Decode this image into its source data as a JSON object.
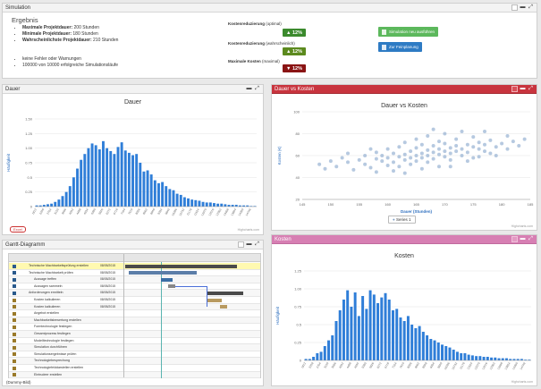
{
  "summary": {
    "header": "Simulation",
    "heading": "Ergebnis",
    "bullets": [
      {
        "label": "Maximale Projektdauer:",
        "value": "200 Stunden"
      },
      {
        "label": "Minimale Projektdauer:",
        "value": "180 Stunden"
      },
      {
        "label": "Wahrscheinlichste Projektdauer:",
        "value": "210 Stunden"
      }
    ],
    "notes": [
      "keine Fehler oder Warnungen",
      "100000 von 10000 erfolgreiche Simulationsläufe"
    ],
    "kpis": [
      {
        "label": "Kostenreduzierung",
        "qualifier": "(optimal)",
        "value": "12%",
        "direction": "up",
        "color": "#3b8a2d"
      },
      {
        "label": "Kostenreduzierung",
        "qualifier": "(wahrscheinlich)",
        "value": "12%",
        "direction": "up",
        "color": "#5c8a1e"
      },
      {
        "label": "Maximale Kosten",
        "qualifier": "(maximal)",
        "value": "12%",
        "direction": "down",
        "color": "#8a1414"
      }
    ],
    "buttons": [
      {
        "label": "Simulation neu ausführen",
        "color": "#5cb85c"
      },
      {
        "label": "Zur Feinplanung",
        "color": "#2e7bc4"
      }
    ]
  },
  "dauer_panel": {
    "header": "Dauer",
    "credit": "Highcharts.com",
    "export_label": "Excel"
  },
  "scatter_panel": {
    "header": "Dauer vs Kosten",
    "credit": "Highcharts.com"
  },
  "kosten_panel": {
    "header": "Kosten",
    "credit": "Highcharts.com"
  },
  "gantt_panel": {
    "header": "Gantt-Diagramm",
    "caption": "(Dummy-Bild)",
    "rows": [
      "Technische Machbarkeitsprüfung erstellen",
      "Technische Machbarkeit prüfen",
      "Aussage treffen",
      "Aussagen sammeln",
      "Anforderungen ermitteln",
      "Kosten kalkulieren",
      "Kosten kalkulieren",
      "Angebot erstellen",
      "Machbarkeitsbewertung erstellen",
      "Formtechnologie festlegen",
      "Gesamtprozess festlegen",
      "Modelltechnologie festlegen",
      "Simulation durchführen",
      "Simulationsergebnisse prüfen",
      "Technologiebesprechung",
      "Technologiefelddarstellen erstellen",
      "Eintrudeer erstellen"
    ],
    "dates": [
      "08/05/2015",
      "08/05/2015",
      "08/05/2015",
      "08/05/2015",
      "08/05/2015",
      "08/05/2015",
      "08/05/2015"
    ]
  },
  "chart_data": [
    {
      "type": "bar",
      "title": "Dauer",
      "ylabel": "Häufigkeit",
      "ylim": [
        0,
        1.5
      ],
      "yticks": [
        "0",
        "0.25",
        "0.5",
        "0.75",
        "1.00",
        "1.25",
        "1.50"
      ],
      "categories": [
        "1812",
        "2035",
        "2258",
        "2481",
        "2704",
        "2927",
        "3150",
        "3373",
        "3596",
        "3819",
        "4042",
        "4265",
        "4488",
        "4711",
        "4934",
        "5157",
        "5380",
        "5603",
        "5826",
        "6049",
        "6272",
        "6495",
        "6718",
        "6941",
        "7164",
        "7387",
        "7610",
        "7833",
        "8056",
        "8279",
        "8502",
        "8725",
        "8948",
        "9171",
        "9394",
        "9617",
        "9840",
        "10063",
        "10286",
        "10509",
        "10732",
        "10955",
        "11178",
        "11401",
        "11624",
        "11847",
        "12070",
        "12293",
        "12516",
        "12739",
        "12962",
        "13185",
        "13408",
        "13631",
        "13854",
        "14077",
        "14300",
        "14523",
        "14746",
        "14969"
      ],
      "values": [
        0.02,
        0.02,
        0.03,
        0.04,
        0.05,
        0.08,
        0.12,
        0.18,
        0.25,
        0.35,
        0.5,
        0.65,
        0.8,
        0.9,
        1.0,
        1.08,
        1.05,
        0.98,
        1.12,
        1.0,
        0.95,
        0.9,
        1.02,
        1.1,
        0.96,
        0.92,
        0.88,
        0.9,
        0.75,
        0.6,
        0.62,
        0.55,
        0.45,
        0.4,
        0.42,
        0.35,
        0.3,
        0.28,
        0.22,
        0.2,
        0.16,
        0.14,
        0.12,
        0.11,
        0.1,
        0.08,
        0.07,
        0.07,
        0.06,
        0.05,
        0.05,
        0.04,
        0.03,
        0.03,
        0.03,
        0.02,
        0.02,
        0.02,
        0.01,
        0.01
      ]
    },
    {
      "type": "scatter",
      "title": "Dauer vs Kosten",
      "xlabel": "Dauer (Stunden)",
      "ylabel": "Kosten (€)",
      "xlim": [
        145,
        185
      ],
      "ylim": [
        20,
        100
      ],
      "xticks": [
        "145",
        "150",
        "155",
        "160",
        "165",
        "170",
        "175",
        "180",
        "185"
      ],
      "yticks": [
        "20",
        "40",
        "60",
        "80",
        "100"
      ],
      "series": [
        {
          "name": "Series 1",
          "points": [
            [
              148,
              52
            ],
            [
              149,
              48
            ],
            [
              150,
              55
            ],
            [
              151,
              50
            ],
            [
              152,
              58
            ],
            [
              153,
              54
            ],
            [
              154,
              47
            ],
            [
              155,
              56
            ],
            [
              156,
              60
            ],
            [
              156,
              52
            ],
            [
              157,
              49
            ],
            [
              158,
              57
            ],
            [
              158,
              63
            ],
            [
              159,
              55
            ],
            [
              159,
              60
            ],
            [
              160,
              58
            ],
            [
              160,
              51
            ],
            [
              160,
              66
            ],
            [
              161,
              62
            ],
            [
              161,
              54
            ],
            [
              162,
              59
            ],
            [
              162,
              68
            ],
            [
              162,
              50
            ],
            [
              163,
              61
            ],
            [
              163,
              56
            ],
            [
              163,
              72
            ],
            [
              164,
              64
            ],
            [
              164,
              58
            ],
            [
              164,
              52
            ],
            [
              165,
              60
            ],
            [
              165,
              67
            ],
            [
              165,
              55
            ],
            [
              165,
              75
            ],
            [
              166,
              62
            ],
            [
              166,
              58
            ],
            [
              166,
              70
            ],
            [
              167,
              65
            ],
            [
              167,
              60
            ],
            [
              167,
              54
            ],
            [
              167,
              78
            ],
            [
              168,
              63
            ],
            [
              168,
              57
            ],
            [
              168,
              69
            ],
            [
              169,
              66
            ],
            [
              169,
              61
            ],
            [
              169,
              73
            ],
            [
              169,
              50
            ],
            [
              170,
              64
            ],
            [
              170,
              59
            ],
            [
              170,
              71
            ],
            [
              170,
              80
            ],
            [
              171,
              67
            ],
            [
              171,
              62
            ],
            [
              171,
              56
            ],
            [
              172,
              69
            ],
            [
              172,
              64
            ],
            [
              172,
              75
            ],
            [
              173,
              66
            ],
            [
              173,
              60
            ],
            [
              173,
              82
            ],
            [
              174,
              70
            ],
            [
              174,
              63
            ],
            [
              175,
              68
            ],
            [
              175,
              58
            ],
            [
              175,
              77
            ],
            [
              176,
              66
            ],
            [
              176,
              72
            ],
            [
              177,
              64
            ],
            [
              177,
              70
            ],
            [
              178,
              74
            ],
            [
              178,
              62
            ],
            [
              179,
              68
            ],
            [
              180,
              71
            ],
            [
              181,
              66
            ],
            [
              182,
              73
            ],
            [
              183,
              69
            ],
            [
              158,
              45
            ],
            [
              161,
              46
            ],
            [
              166,
              48
            ],
            [
              171,
              50
            ],
            [
              174,
              55
            ],
            [
              176,
              59
            ],
            [
              179,
              60
            ],
            [
              168,
              84
            ],
            [
              163,
              44
            ],
            [
              157,
              66
            ],
            [
              153,
              62
            ],
            [
              181,
              78
            ],
            [
              184,
              75
            ],
            [
              177,
              82
            ]
          ]
        }
      ]
    },
    {
      "type": "bar",
      "title": "Kosten",
      "ylabel": "Häufigkeit",
      "ylim": [
        0,
        1.25
      ],
      "yticks": [
        "0",
        "0.25",
        "0.5",
        "0.75",
        "1.00",
        "1.25"
      ],
      "categories": [
        "1812",
        "2035",
        "2258",
        "2481",
        "2704",
        "2927",
        "3150",
        "3373",
        "3596",
        "3819",
        "4042",
        "4265",
        "4488",
        "4711",
        "4934",
        "5157",
        "5380",
        "5603",
        "5826",
        "6049",
        "6272",
        "6495",
        "6718",
        "6941",
        "7164",
        "7387",
        "7610",
        "7833",
        "8056",
        "8279",
        "8502",
        "8725",
        "8948",
        "9171",
        "9394",
        "9617",
        "9840",
        "10063",
        "10286",
        "10509",
        "10732",
        "10955",
        "11178",
        "11401",
        "11624",
        "11847",
        "12070",
        "12293",
        "12516",
        "12739",
        "12962",
        "13185",
        "13408",
        "13631",
        "13854",
        "14077",
        "14300",
        "14523",
        "14746",
        "14969"
      ],
      "values": [
        0.02,
        0.02,
        0.05,
        0.1,
        0.12,
        0.2,
        0.28,
        0.35,
        0.55,
        0.7,
        0.85,
        0.98,
        0.75,
        0.95,
        0.62,
        0.9,
        0.72,
        0.98,
        0.92,
        0.8,
        0.88,
        0.94,
        0.85,
        0.7,
        0.72,
        0.6,
        0.55,
        0.62,
        0.5,
        0.45,
        0.48,
        0.4,
        0.35,
        0.3,
        0.28,
        0.25,
        0.22,
        0.2,
        0.18,
        0.15,
        0.12,
        0.1,
        0.1,
        0.08,
        0.07,
        0.06,
        0.06,
        0.05,
        0.05,
        0.04,
        0.04,
        0.03,
        0.03,
        0.03,
        0.02,
        0.02,
        0.02,
        0.02,
        0.01,
        0.01
      ]
    }
  ]
}
